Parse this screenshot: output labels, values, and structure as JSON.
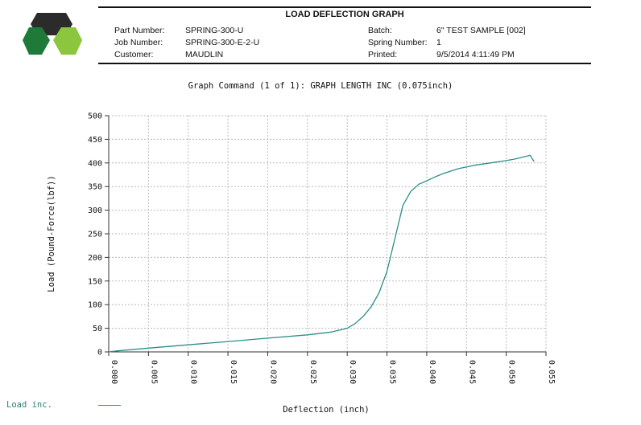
{
  "header": {
    "title": "LOAD DEFLECTION GRAPH",
    "left": [
      {
        "label": "Part Number:",
        "value": "SPRING-300-U"
      },
      {
        "label": "Job Number:",
        "value": "SPRING-300-E-2-U"
      },
      {
        "label": "Customer:",
        "value": "MAUDLIN"
      }
    ],
    "right": [
      {
        "label": "Batch:",
        "value": "6\" TEST SAMPLE [002]"
      },
      {
        "label": "Spring Number:",
        "value": "1"
      },
      {
        "label": "Printed:",
        "value": "9/5/2014 4:11:49 PM"
      }
    ]
  },
  "colors": {
    "logo_dark": "#2b2b2b",
    "logo_green_dark": "#1f7a3a",
    "logo_green_light": "#8cc63f",
    "series": "#2a8f8a",
    "grid": "#bbbbbb"
  },
  "chart_data": {
    "type": "line",
    "title": "Graph Command (1 of 1): GRAPH LENGTH INC (0.075inch)",
    "xlabel": "Deflection (inch)",
    "ylabel": "Load (Pound-Force(lbf))",
    "xlim": [
      0,
      0.055
    ],
    "ylim": [
      0,
      500
    ],
    "xticks": [
      "0.000",
      "0.005",
      "0.010",
      "0.015",
      "0.020",
      "0.025",
      "0.030",
      "0.035",
      "0.040",
      "0.045",
      "0.050",
      "0.055"
    ],
    "yticks": [
      "0",
      "50",
      "100",
      "150",
      "200",
      "250",
      "300",
      "350",
      "400",
      "450",
      "500"
    ],
    "grid": true,
    "legend_position": "bottom-left",
    "series": [
      {
        "name": "Load inc.",
        "x": [
          0.0,
          0.001,
          0.005,
          0.01,
          0.015,
          0.02,
          0.025,
          0.028,
          0.03,
          0.031,
          0.032,
          0.033,
          0.034,
          0.035,
          0.036,
          0.037,
          0.038,
          0.039,
          0.04,
          0.041,
          0.042,
          0.044,
          0.046,
          0.048,
          0.05,
          0.051,
          0.052,
          0.053,
          0.0535
        ],
        "y": [
          0,
          2,
          8,
          15,
          22,
          29,
          36,
          42,
          50,
          60,
          75,
          95,
          125,
          170,
          240,
          310,
          340,
          355,
          362,
          370,
          377,
          388,
          395,
          400,
          405,
          408,
          412,
          416,
          403
        ]
      }
    ]
  }
}
